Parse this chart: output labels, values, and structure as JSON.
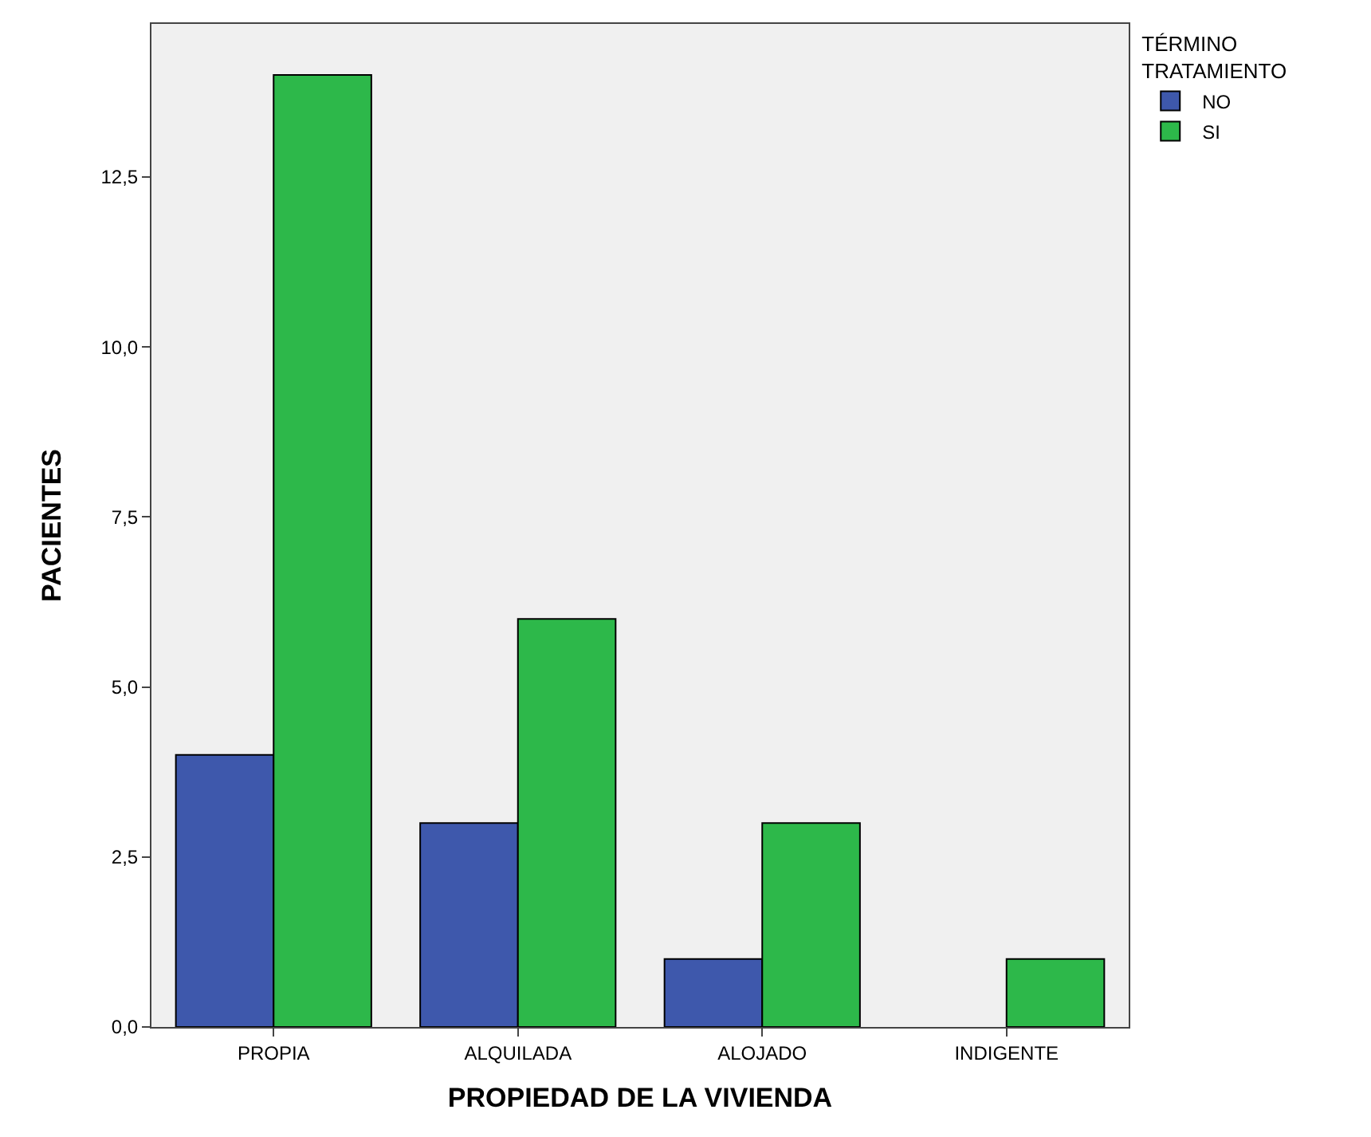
{
  "chart_data": {
    "type": "bar",
    "xlabel": "PROPIEDAD DE LA VIVIENDA",
    "ylabel": "PACIENTES",
    "legend_title": "TÉRMINO TRATAMIENTO",
    "legend": "top right",
    "categories": [
      "PROPIA",
      "ALQUILADA",
      "ALOJADO",
      "INDIGENTE"
    ],
    "series": [
      {
        "name": "NO",
        "color": "#3e58ac",
        "values": [
          4,
          3,
          1,
          null
        ]
      },
      {
        "name": "SI",
        "color": "#2db84a",
        "values": [
          14,
          6,
          3,
          1
        ]
      }
    ],
    "ylim": [
      0,
      14.75
    ],
    "yticks": [
      {
        "value": 0,
        "label": "0,0"
      },
      {
        "value": 2.5,
        "label": "2,5"
      },
      {
        "value": 5,
        "label": "5,0"
      },
      {
        "value": 7.5,
        "label": "7,5"
      },
      {
        "value": 10,
        "label": "10,0"
      },
      {
        "value": 12.5,
        "label": "12,5"
      }
    ],
    "grid": false
  }
}
